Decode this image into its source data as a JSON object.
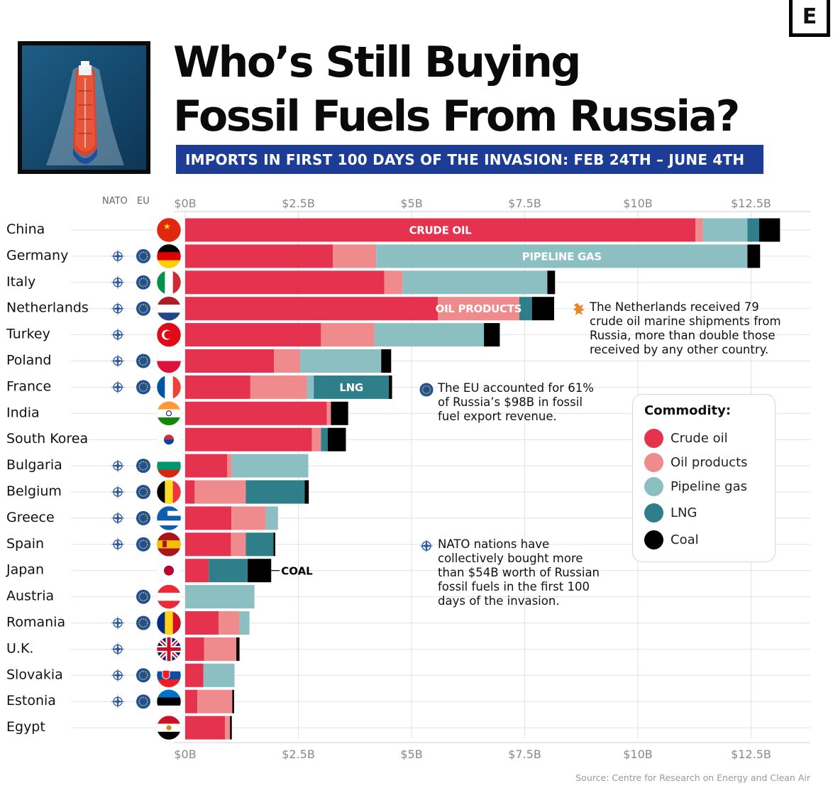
{
  "header": {
    "logo_letter": "E",
    "title_line1": "Who’s Still Buying",
    "title_line2": "Fossil Fuels From Russia?",
    "subtitle": "IMPORTS IN FIRST 100 DAYS OF THE INVASION:  FEB 24TH – JUNE 4TH"
  },
  "columns": {
    "nato": "NATO",
    "eu": "EU"
  },
  "annotations": {
    "netherlands": "The Netherlands received 79 crude oil marine shipments from Russia, more than double those received by any other country.",
    "eu": "The EU accounted for 61% of Russia’s $98B in fossil fuel export revenue.",
    "nato": "NATO nations have collectively bought more than $54B worth of Russian fossil fuels in the first 100 days of the invasion."
  },
  "annotation_lines": {
    "netherlands": [
      "The Netherlands received 79",
      "crude oil marine shipments from",
      "Russia, more than double those",
      "received by any other country."
    ],
    "eu": [
      "The EU accounted for 61%",
      "of Russia’s $98B in fossil",
      "fuel export revenue."
    ],
    "nato": [
      "NATO nations have",
      "collectively bought more",
      "than $54B worth of Russian",
      "fossil fuels in the first 100",
      "days of the invasion."
    ]
  },
  "legend": {
    "title": "Commodity:",
    "items": [
      {
        "label": "Crude oil",
        "color": "#e5324f"
      },
      {
        "label": "Oil products",
        "color": "#ef8a8d"
      },
      {
        "label": "Pipeline gas",
        "color": "#8cbfc2"
      },
      {
        "label": "LNG",
        "color": "#2e7f8a"
      },
      {
        "label": "Coal",
        "color": "#000000"
      }
    ]
  },
  "source": "Source: Centre for Research on Energy and Clean Air",
  "chart_data": {
    "type": "bar",
    "orientation": "horizontal",
    "stacked": true,
    "xlim": [
      0,
      13.8
    ],
    "x_ticks": [
      "$0B",
      "$2.5B",
      "$5B",
      "$7.5B",
      "$10B",
      "$12.5B"
    ],
    "x_tick_values": [
      0,
      2.5,
      5,
      7.5,
      10,
      12.5
    ],
    "grid": true,
    "legend_position": "right",
    "in_bar_labels": [
      {
        "text": "CRUDE OIL",
        "row": "China",
        "segment": "Crude oil"
      },
      {
        "text": "PIPELINE GAS",
        "row": "Germany",
        "segment": "Pipeline gas"
      },
      {
        "text": "OIL PRODUCTS",
        "row": "Netherlands",
        "segment": "Oil products"
      },
      {
        "text": "LNG",
        "row": "France",
        "segment": "LNG"
      },
      {
        "text": "COAL",
        "row": "Japan",
        "segment": "Coal",
        "outside": true
      }
    ],
    "series_names": [
      "Crude oil",
      "Oil products",
      "Pipeline gas",
      "LNG",
      "Coal"
    ],
    "series_colors": [
      "#e5324f",
      "#ef8a8d",
      "#8cbfc2",
      "#2e7f8a",
      "#000000"
    ],
    "rows": [
      {
        "country": "China",
        "nato": false,
        "eu": false,
        "values": [
          11.27,
          0.17,
          0.98,
          0.26,
          0.46
        ]
      },
      {
        "country": "Germany",
        "nato": true,
        "eu": true,
        "values": [
          3.26,
          0.96,
          8.2,
          0,
          0.28
        ]
      },
      {
        "country": "Italy",
        "nato": true,
        "eu": true,
        "values": [
          4.4,
          0.4,
          3.2,
          0,
          0.17
        ]
      },
      {
        "country": "Netherlands",
        "nato": true,
        "eu": true,
        "values": [
          5.58,
          1.8,
          0,
          0.28,
          0.49
        ]
      },
      {
        "country": "Turkey",
        "nato": true,
        "eu": false,
        "values": [
          3.0,
          1.18,
          2.42,
          0,
          0.35
        ]
      },
      {
        "country": "Poland",
        "nato": true,
        "eu": true,
        "values": [
          1.96,
          0.58,
          1.79,
          0,
          0.22
        ]
      },
      {
        "country": "France",
        "nato": true,
        "eu": true,
        "values": [
          1.44,
          1.25,
          0.15,
          1.66,
          0.07
        ]
      },
      {
        "country": "India",
        "nato": false,
        "eu": false,
        "values": [
          3.13,
          0.09,
          0,
          0,
          0.38
        ]
      },
      {
        "country": "South Korea",
        "nato": false,
        "eu": false,
        "values": [
          2.8,
          0.2,
          0,
          0.15,
          0.4
        ]
      },
      {
        "country": "Bulgaria",
        "nato": true,
        "eu": true,
        "values": [
          0.93,
          0.1,
          1.69,
          0,
          0
        ]
      },
      {
        "country": "Belgium",
        "nato": true,
        "eu": true,
        "values": [
          0.21,
          1.13,
          0,
          1.3,
          0.09
        ]
      },
      {
        "country": "Greece",
        "nato": true,
        "eu": true,
        "values": [
          1.02,
          0.76,
          0.27,
          0,
          0
        ]
      },
      {
        "country": "Spain",
        "nato": true,
        "eu": true,
        "values": [
          1.01,
          0.33,
          0,
          0.61,
          0.04
        ]
      },
      {
        "country": "Japan",
        "nato": false,
        "eu": false,
        "values": [
          0.52,
          0,
          0,
          0.86,
          0.52
        ]
      },
      {
        "country": "Austria",
        "nato": false,
        "eu": true,
        "values": [
          0,
          0,
          1.53,
          0,
          0
        ]
      },
      {
        "country": "Romania",
        "nato": true,
        "eu": true,
        "values": [
          0.74,
          0.46,
          0.22,
          0,
          0
        ]
      },
      {
        "country": "U.K.",
        "nato": true,
        "eu": false,
        "values": [
          0.42,
          0.71,
          0,
          0,
          0.07
        ]
      },
      {
        "country": "Slovakia",
        "nato": true,
        "eu": true,
        "values": [
          0.4,
          0,
          0.69,
          0,
          0
        ]
      },
      {
        "country": "Estonia",
        "nato": true,
        "eu": true,
        "values": [
          0.27,
          0.77,
          0,
          0,
          0.04
        ]
      },
      {
        "country": "Egypt",
        "nato": false,
        "eu": false,
        "values": [
          0.88,
          0.11,
          0,
          0,
          0.04
        ]
      }
    ]
  }
}
